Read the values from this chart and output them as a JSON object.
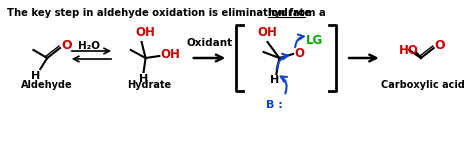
{
  "title": "The key step in aldehyde oxidation is elimination from a ",
  "title_underline": "hydrate",
  "bg_color": "#ffffff",
  "text_color": "#000000",
  "red_color": "#cc0000",
  "green_color": "#00aa00",
  "blue_color": "#1144cc",
  "label_aldehyde": "Aldehyde",
  "label_hydrate": "Hydrate",
  "label_carboxylic": "Carboxylic acid",
  "label_oxidant": "Oxidant",
  "label_B": "B :",
  "label_H2O": "H₂O",
  "label_OH": "OH",
  "label_LG": "LG",
  "label_HO": "HO",
  "figsize": [
    4.74,
    1.48
  ],
  "dpi": 100
}
